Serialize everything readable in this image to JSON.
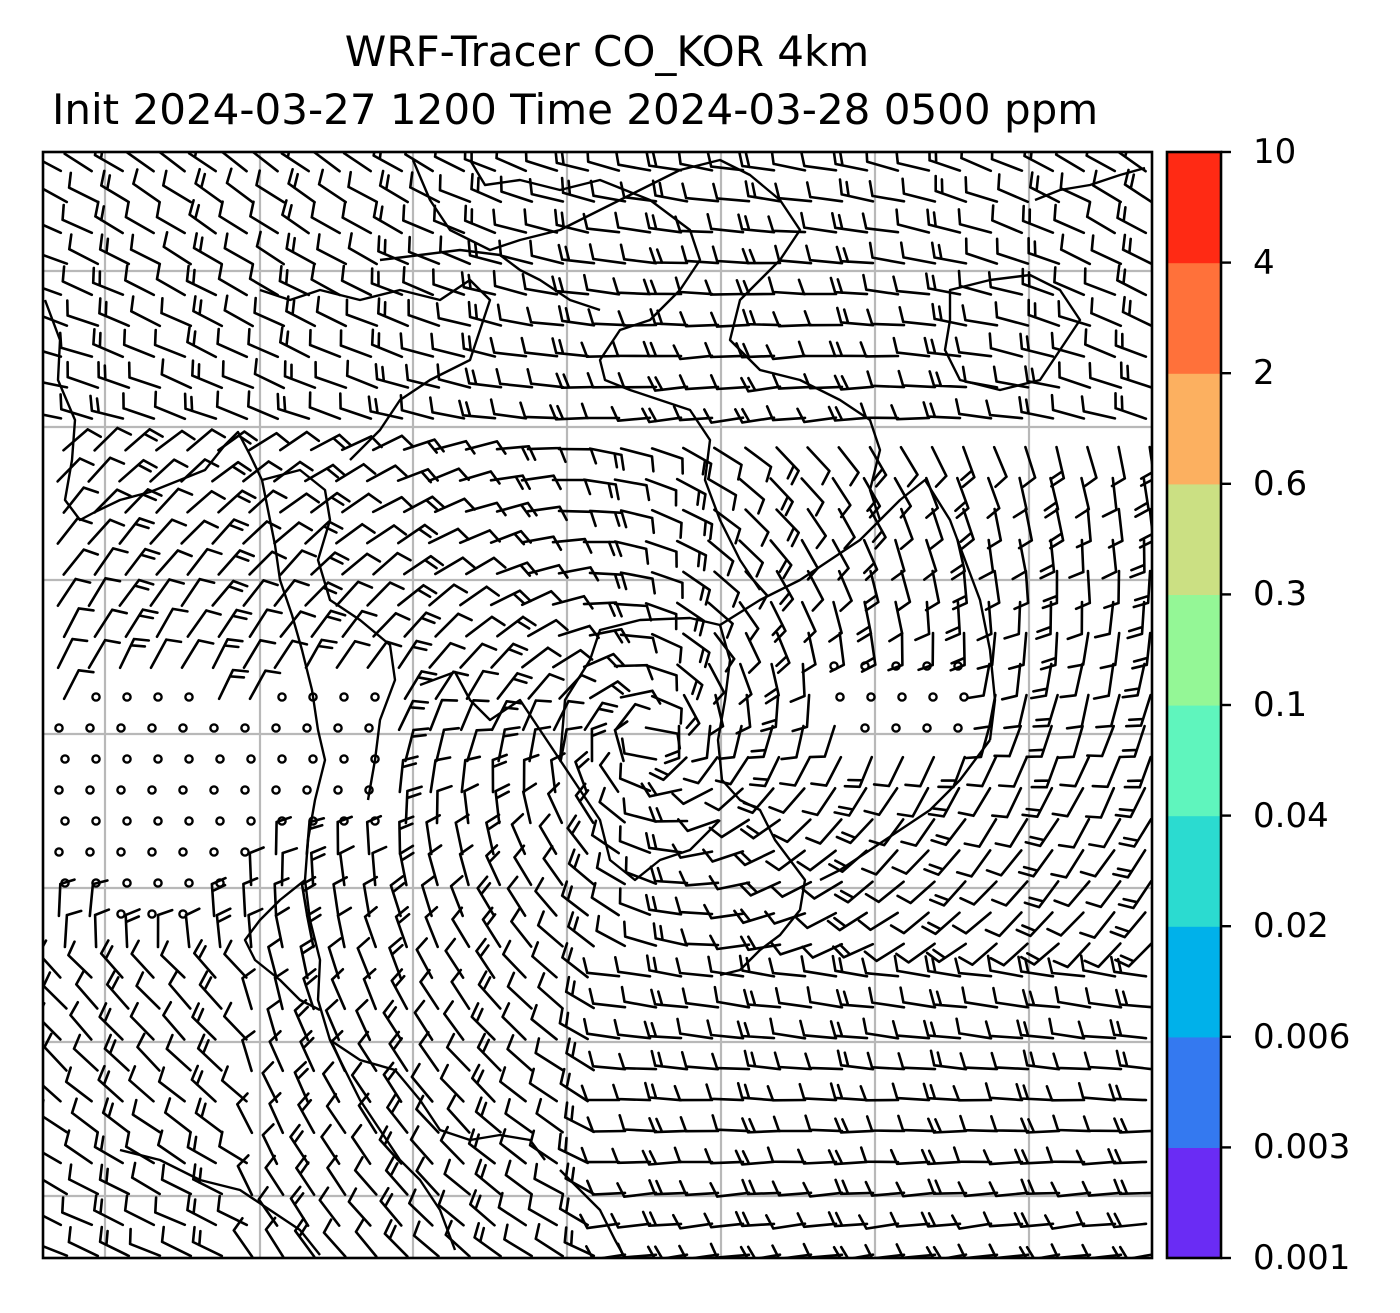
{
  "title": {
    "line1": "WRF-Tracer CO_KOR 4km",
    "line2": "Init 2024-03-27 1200 Time 2024-03-28 0500 ppm"
  },
  "colorbar": {
    "levels": [
      "0.001",
      "0.003",
      "0.006",
      "0.02",
      "0.04",
      "0.1",
      "0.3",
      "0.6",
      "2",
      "4",
      "10"
    ],
    "colors": [
      "#6a2cf4",
      "#3479f0",
      "#00b1ea",
      "#2bdbd0",
      "#5ff5bd",
      "#94f796",
      "#cbe083",
      "#fcb060",
      "#ff713a",
      "#ff2a14"
    ]
  },
  "map": {
    "overlay": "wind-barbs",
    "border_color": "#000000",
    "grid_color": "#b8b8b8"
  }
}
